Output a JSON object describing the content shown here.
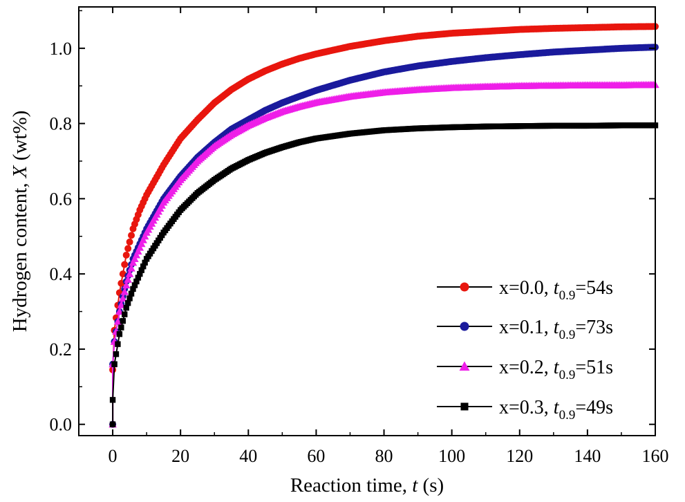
{
  "chart_data": {
    "type": "scatter",
    "title": "",
    "xlabel": "Reaction time, ",
    "xlabel_var": "t",
    "xlabel_unit": " (s)",
    "ylabel": "Hydrogen content, ",
    "ylabel_var": "X",
    "ylabel_unit": " (wt%)",
    "xlim": [
      -10,
      160
    ],
    "ylim": [
      -0.03,
      1.11
    ],
    "xticks": [
      0,
      20,
      40,
      60,
      80,
      100,
      120,
      140,
      160
    ],
    "xtick_labels": [
      "0",
      "20",
      "40",
      "60",
      "80",
      "100",
      "120",
      "140",
      "160"
    ],
    "yticks": [
      0.0,
      0.2,
      0.4,
      0.6,
      0.8,
      1.0
    ],
    "ytick_labels": [
      "0.0",
      "0.2",
      "0.4",
      "0.6",
      "0.8",
      "1.0"
    ],
    "legend_position": "bottom-right",
    "series": [
      {
        "name": "x=0.0",
        "label_prefix": "x=0.0, ",
        "t_var": "t",
        "t_sub": "0.9",
        "t_value": "=54s",
        "color": "#e8160e",
        "marker": "circle",
        "x": [
          0,
          0,
          0.5,
          2,
          4,
          6,
          8,
          10,
          15,
          20,
          25,
          30,
          35,
          40,
          45,
          50,
          55,
          60,
          70,
          80,
          90,
          100,
          110,
          120,
          130,
          140,
          150,
          160
        ],
        "y": [
          0.0,
          0.145,
          0.25,
          0.35,
          0.45,
          0.52,
          0.57,
          0.61,
          0.69,
          0.76,
          0.81,
          0.855,
          0.89,
          0.918,
          0.94,
          0.958,
          0.973,
          0.985,
          1.005,
          1.02,
          1.032,
          1.04,
          1.045,
          1.05,
          1.053,
          1.055,
          1.057,
          1.058
        ]
      },
      {
        "name": "x=0.1",
        "label_prefix": "x=0.1, ",
        "t_var": "t",
        "t_sub": "0.9",
        "t_value": "=73s",
        "color": "#1a1a9c",
        "marker": "circle",
        "x": [
          0,
          0,
          0.5,
          2,
          4,
          6,
          8,
          10,
          15,
          20,
          25,
          30,
          35,
          40,
          45,
          50,
          55,
          60,
          70,
          80,
          90,
          100,
          110,
          120,
          130,
          140,
          150,
          160
        ],
        "y": [
          0.0,
          0.16,
          0.22,
          0.3,
          0.38,
          0.44,
          0.48,
          0.52,
          0.6,
          0.66,
          0.71,
          0.75,
          0.785,
          0.81,
          0.835,
          0.855,
          0.872,
          0.888,
          0.915,
          0.937,
          0.953,
          0.965,
          0.975,
          0.983,
          0.99,
          0.995,
          1.0,
          1.003
        ]
      },
      {
        "name": "x=0.2",
        "label_prefix": "x=0.2, ",
        "t_var": "t",
        "t_sub": "0.9",
        "t_value": "=51s",
        "color": "#ee1ee8",
        "marker": "triangle",
        "x": [
          0,
          0,
          0.5,
          2,
          4,
          6,
          8,
          10,
          15,
          20,
          25,
          30,
          35,
          40,
          45,
          50,
          55,
          60,
          70,
          80,
          90,
          100,
          110,
          120,
          130,
          140,
          150,
          160
        ],
        "y": [
          0.0,
          0.16,
          0.22,
          0.3,
          0.37,
          0.43,
          0.47,
          0.51,
          0.59,
          0.65,
          0.7,
          0.74,
          0.77,
          0.795,
          0.815,
          0.832,
          0.845,
          0.856,
          0.872,
          0.883,
          0.89,
          0.895,
          0.898,
          0.9,
          0.901,
          0.902,
          0.902,
          0.903
        ]
      },
      {
        "name": "x=0.3",
        "label_prefix": "x=0.3, ",
        "t_var": "t",
        "t_sub": "0.9",
        "t_value": "=49s",
        "color": "#000000",
        "marker": "square",
        "x": [
          0,
          0,
          0.5,
          2,
          4,
          6,
          8,
          10,
          15,
          20,
          25,
          30,
          35,
          40,
          45,
          50,
          55,
          60,
          70,
          80,
          90,
          100,
          110,
          120,
          130,
          140,
          150,
          160
        ],
        "y": [
          0.0,
          0.065,
          0.16,
          0.24,
          0.31,
          0.36,
          0.4,
          0.44,
          0.51,
          0.57,
          0.615,
          0.65,
          0.68,
          0.703,
          0.722,
          0.737,
          0.75,
          0.76,
          0.773,
          0.782,
          0.787,
          0.79,
          0.792,
          0.793,
          0.794,
          0.794,
          0.795,
          0.795
        ]
      }
    ]
  }
}
